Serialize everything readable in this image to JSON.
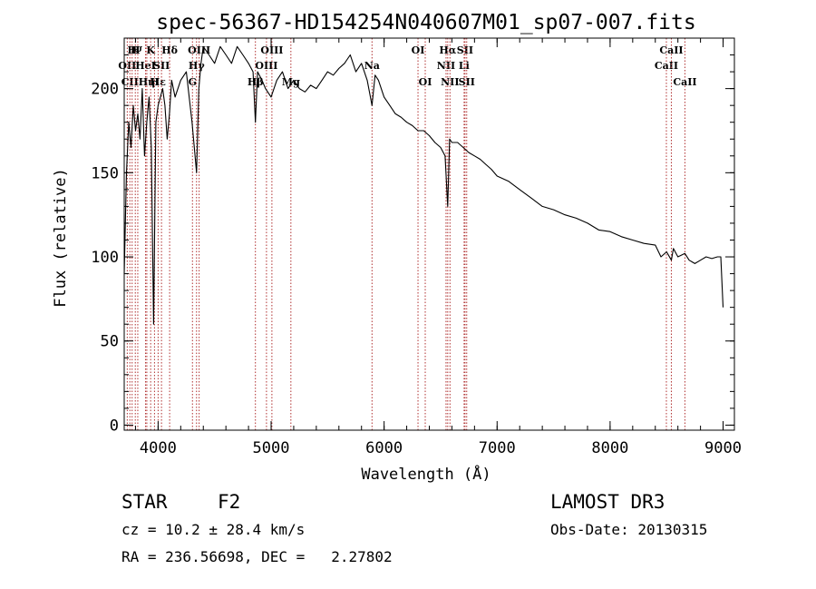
{
  "chart_data": {
    "type": "line",
    "title": "spec-56367-HD154254N040607M01_sp07-007.fits",
    "xlabel": "Wavelength (Å)",
    "ylabel": "Flux (relative)",
    "xlim": [
      3700,
      9100
    ],
    "ylim": [
      -3,
      230
    ],
    "x_ticks": [
      4000,
      5000,
      6000,
      7000,
      8000,
      9000
    ],
    "x_minor_step": 200,
    "y_ticks": [
      0,
      50,
      100,
      150,
      200
    ],
    "y_minor_step": 10,
    "series": [
      {
        "name": "spectrum",
        "x": [
          3700,
          3720,
          3740,
          3760,
          3780,
          3800,
          3820,
          3840,
          3860,
          3880,
          3900,
          3920,
          3940,
          3960,
          3980,
          4000,
          4020,
          4040,
          4060,
          4080,
          4100,
          4120,
          4150,
          4200,
          4250,
          4300,
          4340,
          4360,
          4380,
          4400,
          4450,
          4500,
          4550,
          4600,
          4650,
          4700,
          4750,
          4800,
          4840,
          4861,
          4880,
          4920,
          4950,
          5000,
          5050,
          5100,
          5150,
          5200,
          5250,
          5300,
          5350,
          5400,
          5450,
          5500,
          5550,
          5600,
          5650,
          5700,
          5750,
          5800,
          5850,
          5893,
          5920,
          5950,
          6000,
          6050,
          6100,
          6150,
          6200,
          6250,
          6300,
          6350,
          6400,
          6450,
          6500,
          6540,
          6563,
          6580,
          6600,
          6650,
          6700,
          6750,
          6800,
          6850,
          6900,
          6950,
          7000,
          7100,
          7200,
          7300,
          7400,
          7500,
          7600,
          7700,
          7800,
          7900,
          8000,
          8100,
          8200,
          8300,
          8400,
          8450,
          8500,
          8542,
          8560,
          8600,
          8662,
          8700,
          8750,
          8800,
          8850,
          8900,
          8950,
          8980,
          9000
        ],
        "values": [
          90,
          150,
          180,
          165,
          190,
          175,
          185,
          170,
          200,
          160,
          180,
          195,
          165,
          60,
          180,
          190,
          195,
          200,
          190,
          170,
          185,
          205,
          195,
          205,
          210,
          180,
          150,
          200,
          215,
          225,
          220,
          215,
          225,
          220,
          215,
          225,
          220,
          215,
          210,
          180,
          210,
          205,
          200,
          195,
          205,
          210,
          200,
          205,
          200,
          198,
          202,
          200,
          205,
          210,
          208,
          212,
          215,
          220,
          210,
          215,
          205,
          190,
          208,
          205,
          195,
          190,
          185,
          183,
          180,
          178,
          175,
          175,
          172,
          168,
          165,
          160,
          130,
          170,
          168,
          168,
          165,
          162,
          160,
          158,
          155,
          152,
          148,
          145,
          140,
          135,
          130,
          128,
          125,
          123,
          120,
          116,
          115,
          112,
          110,
          108,
          107,
          100,
          103,
          98,
          105,
          100,
          102,
          98,
          96,
          98,
          100,
          99,
          100,
          100,
          70
        ]
      }
    ],
    "spectral_lines": [
      {
        "wavelength": 3727,
        "label": "OII",
        "row": 1
      },
      {
        "wavelength": 3750,
        "label": "CII",
        "row": 2
      },
      {
        "wavelength": 3770,
        "label": "H",
        "row": 0
      },
      {
        "wavelength": 3798,
        "label": "H",
        "row": 0
      },
      {
        "wavelength": 3820,
        "label": "Ψ",
        "row": 0
      },
      {
        "wavelength": 3889,
        "label": "HeI",
        "row": 1
      },
      {
        "wavelength": 3900,
        "label": "Hη",
        "row": 2
      },
      {
        "wavelength": 3934,
        "label": "K",
        "row": 0
      },
      {
        "wavelength": 3968,
        "label": "H",
        "row": 2
      },
      {
        "wavelength": 4000,
        "label": "Hε",
        "row": 2
      },
      {
        "wavelength": 4030,
        "label": "SII",
        "row": 1
      },
      {
        "wavelength": 4102,
        "label": "Hδ",
        "row": 0
      },
      {
        "wavelength": 4304,
        "label": "G",
        "row": 2
      },
      {
        "wavelength": 4340,
        "label": "Hγ",
        "row": 1
      },
      {
        "wavelength": 4363,
        "label": "OIII",
        "row": 0
      },
      {
        "wavelength": 4861,
        "label": "Hβ",
        "row": 2
      },
      {
        "wavelength": 4959,
        "label": "OIII",
        "row": 1
      },
      {
        "wavelength": 5007,
        "label": "OIII",
        "row": 0
      },
      {
        "wavelength": 5175,
        "label": "Mg",
        "row": 2
      },
      {
        "wavelength": 5893,
        "label": "Na",
        "row": 1
      },
      {
        "wavelength": 6300,
        "label": "OI",
        "row": 0
      },
      {
        "wavelength": 6364,
        "label": "OI",
        "row": 2
      },
      {
        "wavelength": 6548,
        "label": "NII",
        "row": 1
      },
      {
        "wavelength": 6563,
        "label": "Hα",
        "row": 0
      },
      {
        "wavelength": 6583,
        "label": "NII",
        "row": 2
      },
      {
        "wavelength": 6708,
        "label": "Li",
        "row": 1
      },
      {
        "wavelength": 6716,
        "label": "SII",
        "row": 0
      },
      {
        "wavelength": 6731,
        "label": "SII",
        "row": 2
      },
      {
        "wavelength": 8498,
        "label": "CaII",
        "row": 1
      },
      {
        "wavelength": 8542,
        "label": "CaII",
        "row": 0
      },
      {
        "wavelength": 8662,
        "label": "CaII",
        "row": 2
      }
    ]
  },
  "info": {
    "class_label": "STAR",
    "subclass_label": "F2",
    "survey": "LAMOST DR3",
    "cz_text": "cz = 10.2 ± 28.4 km/s",
    "obs_date_text": "Obs-Date: 20130315",
    "radec_text": "RA = 236.56698, DEC =   2.27802"
  },
  "colors": {
    "line_marker": "#b03030",
    "spectrum": "#000000",
    "axis": "#000000",
    "background": "#ffffff"
  }
}
